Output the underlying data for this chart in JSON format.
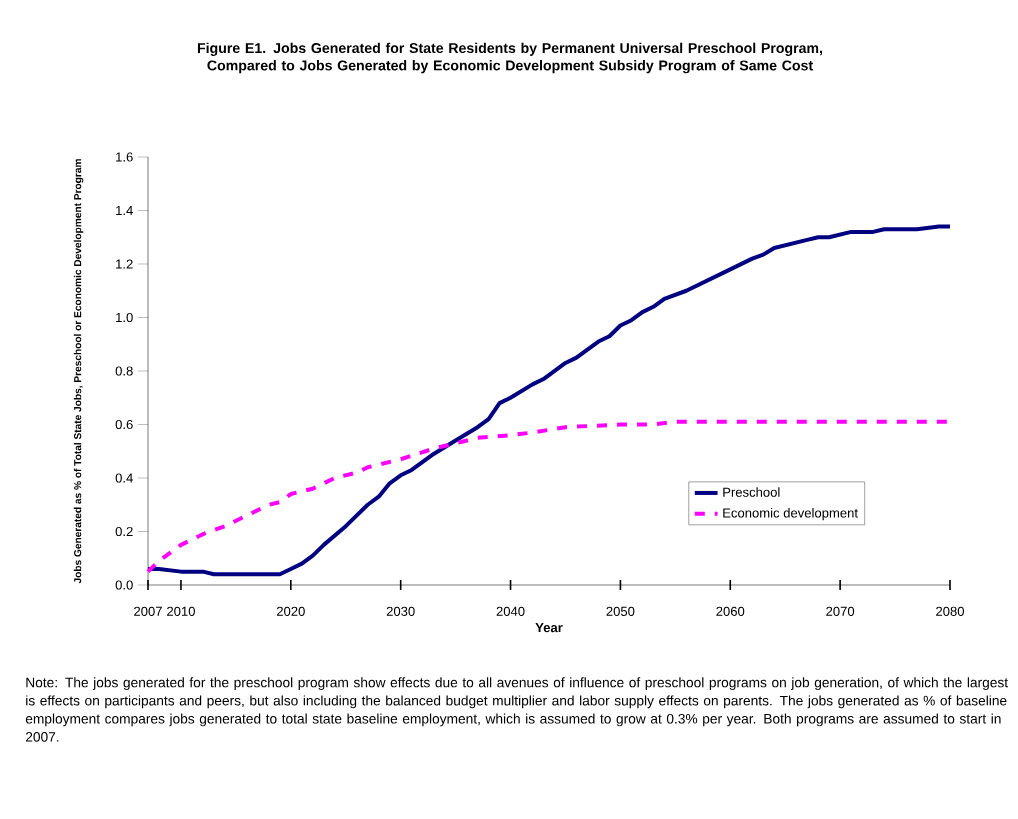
{
  "chart_data": {
    "type": "line",
    "title": "Figure E1.  Jobs Generated for State Residents by Permanent Universal Preschool Program, Compared to Jobs Generated by Economic Development Subsidy Program of Same Cost",
    "xlabel": "Year",
    "ylabel": "Jobs Generated as % of Total State Jobs, Preschool or Economic Development Program",
    "annotations": [
      "Note:  The jobs generated for the preschool program show effects due to all avenues of influence of preschool programs on job generation, of which the largest is effects on participants and peers, but also including the balanced budget multiplier and labor supply effects on parents. The jobs generated as % of baseline employment compares jobs generated to total state baseline employment, which is assumed to grow at 0.3% per year. Both programs are assumed to start in 2007."
    ],
    "xlim": [
      2007,
      2080
    ],
    "xticks": [
      2007,
      2010,
      2020,
      2030,
      2040,
      2050,
      2060,
      2070,
      2080
    ],
    "ylim": [
      0,
      1.6
    ],
    "yticks": [
      {
        "value": 0,
        "label": "0.0"
      },
      {
        "value": 0.2,
        "label": "0.2"
      },
      {
        "value": 0.4,
        "label": "0.4"
      },
      {
        "value": 0.6,
        "label": "0.6"
      },
      {
        "value": 0.8,
        "label": "0.8"
      },
      {
        "value": 1.0,
        "label": "1.0"
      },
      {
        "value": 1.2,
        "label": "1.2"
      },
      {
        "value": 1.4,
        "label": "1.4"
      },
      {
        "value": 1.6,
        "label": "1.6"
      }
    ],
    "legend": "bottom right",
    "series": [
      {
        "name": "Preschool",
        "color": "#000080",
        "line_style": "solid",
        "x": [
          2007,
          2008,
          2010,
          2012,
          2013,
          2019,
          2020,
          2021,
          2022,
          2023,
          2025,
          2027,
          2028,
          2029,
          2030,
          2031,
          2033,
          2035,
          2037,
          2038,
          2039,
          2040,
          2042,
          2043,
          2045,
          2046,
          2048,
          2049,
          2050,
          2051,
          2052,
          2053,
          2054,
          2056,
          2060,
          2062,
          2063,
          2064,
          2067,
          2068,
          2069,
          2071,
          2073,
          2074,
          2077,
          2079,
          2080
        ],
        "values": [
          0.06,
          0.06,
          0.05,
          0.05,
          0.04,
          0.04,
          0.06,
          0.08,
          0.11,
          0.15,
          0.22,
          0.3,
          0.33,
          0.38,
          0.41,
          0.43,
          0.49,
          0.54,
          0.59,
          0.62,
          0.68,
          0.7,
          0.75,
          0.77,
          0.83,
          0.85,
          0.91,
          0.93,
          0.97,
          0.99,
          1.02,
          1.04,
          1.07,
          1.1,
          1.18,
          1.22,
          1.235,
          1.26,
          1.29,
          1.3,
          1.3,
          1.32,
          1.32,
          1.33,
          1.33,
          1.34,
          1.34
        ]
      },
      {
        "name": "Economic development",
        "color": "#ff00ff",
        "line_style": "dashed",
        "x": [
          2007,
          2008,
          2010,
          2012,
          2014,
          2016,
          2018,
          2019,
          2020,
          2022,
          2023,
          2024,
          2026,
          2027,
          2030,
          2033,
          2035,
          2037,
          2040,
          2042,
          2045,
          2050,
          2053,
          2055,
          2067,
          2080
        ],
        "values": [
          0.05,
          0.09,
          0.15,
          0.19,
          0.22,
          0.26,
          0.3,
          0.31,
          0.34,
          0.36,
          0.38,
          0.4,
          0.42,
          0.44,
          0.47,
          0.51,
          0.53,
          0.55,
          0.56,
          0.57,
          0.59,
          0.6,
          0.6,
          0.61,
          0.61,
          0.61
        ]
      }
    ]
  }
}
